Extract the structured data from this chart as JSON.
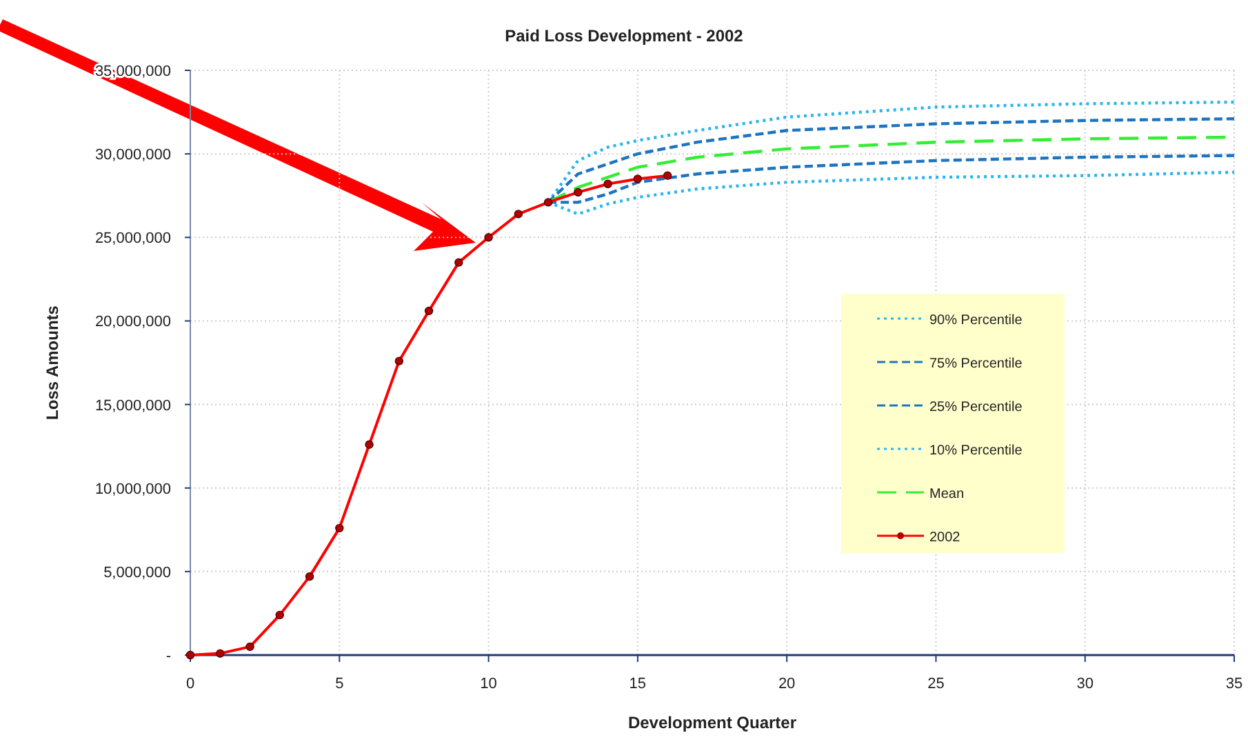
{
  "chart_data": {
    "type": "line",
    "title": "Paid Loss Development - 2002",
    "xlabel": "Development Quarter",
    "ylabel": "Loss Amounts",
    "xlim": [
      0,
      35
    ],
    "xticks": [
      0,
      5,
      10,
      15,
      20,
      25,
      30,
      35
    ],
    "ylim": [
      0,
      35000000
    ],
    "yticks": [
      {
        "value": 0,
        "label": "-"
      },
      {
        "value": 5000000,
        "label": "5,000,000"
      },
      {
        "value": 10000000,
        "label": "10,000,000"
      },
      {
        "value": 15000000,
        "label": "15,000,000"
      },
      {
        "value": 20000000,
        "label": "20,000,000"
      },
      {
        "value": 25000000,
        "label": "25,000,000"
      },
      {
        "value": 30000000,
        "label": "30,000,000"
      },
      {
        "value": 35000000,
        "label": "35,000,000"
      }
    ],
    "grid": true,
    "legend": "right",
    "series": [
      {
        "name": "90% Percentile",
        "color": "#29b5ee",
        "line_style": "dotted",
        "marker": "none",
        "x": [
          12,
          13,
          14,
          15,
          17,
          20,
          25,
          30,
          35
        ],
        "values": [
          27100000,
          29600000,
          30400000,
          30800000,
          31400000,
          32200000,
          32800000,
          33000000,
          33100000
        ]
      },
      {
        "name": "75% Percentile",
        "color": "#1e74c0",
        "line_style": "dashed",
        "marker": "none",
        "x": [
          12,
          13,
          14,
          15,
          17,
          20,
          25,
          30,
          35
        ],
        "values": [
          27100000,
          28800000,
          29400000,
          30000000,
          30700000,
          31400000,
          31800000,
          32000000,
          32100000
        ]
      },
      {
        "name": "25% Percentile",
        "color": "#1e74c0",
        "line_style": "dashed",
        "marker": "none",
        "x": [
          12,
          13,
          14,
          15,
          17,
          20,
          25,
          30,
          35
        ],
        "values": [
          27100000,
          27100000,
          27600000,
          28300000,
          28800000,
          29200000,
          29600000,
          29800000,
          29900000
        ]
      },
      {
        "name": "10% Percentile",
        "color": "#29b5ee",
        "line_style": "dotted",
        "marker": "none",
        "x": [
          12,
          13,
          14,
          15,
          17,
          20,
          25,
          30,
          35
        ],
        "values": [
          27100000,
          26400000,
          27000000,
          27400000,
          27900000,
          28300000,
          28600000,
          28700000,
          28900000
        ]
      },
      {
        "name": "Mean",
        "color": "#33ee33",
        "line_style": "dashed",
        "marker": "none",
        "x": [
          12,
          13,
          15,
          17,
          20,
          25,
          30,
          35
        ],
        "values": [
          27100000,
          28000000,
          29200000,
          29800000,
          30300000,
          30700000,
          30900000,
          31000000
        ]
      },
      {
        "name": "2002",
        "color": "#ff0000",
        "line_style": "solid",
        "marker": "circle",
        "x": [
          0,
          1,
          2,
          3,
          4,
          5,
          6,
          7,
          8,
          9,
          10,
          11,
          12,
          13,
          14,
          15,
          16
        ],
        "values": [
          0,
          100000,
          500000,
          2400000,
          4700000,
          7600000,
          12600000,
          17600000,
          20600000,
          23500000,
          25000000,
          26400000,
          27100000,
          27700000,
          28200000,
          28500000,
          28700000
        ]
      }
    ]
  }
}
